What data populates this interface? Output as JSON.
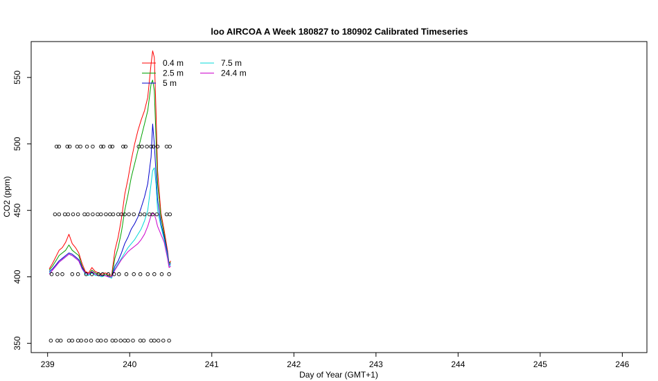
{
  "chart_data": {
    "type": "line",
    "title": "loo AIRCOA A  Week 180827 to 180902  Calibrated Timeseries",
    "xlabel": "Day of Year (GMT+1)",
    "ylabel": "CO2 (ppm)",
    "xlim": [
      238.8,
      246.3
    ],
    "ylim": [
      343,
      577
    ],
    "xticks": [
      239,
      240,
      241,
      242,
      243,
      244,
      245,
      246
    ],
    "yticks": [
      350,
      400,
      450,
      500,
      550
    ],
    "legend_position": "top-left",
    "series": [
      {
        "name": "0.4 m",
        "color": "#ff0000",
        "x": [
          239.02,
          239.06,
          239.1,
          239.14,
          239.18,
          239.22,
          239.26,
          239.3,
          239.34,
          239.38,
          239.42,
          239.46,
          239.5,
          239.54,
          239.58,
          239.62,
          239.66,
          239.7,
          239.74,
          239.78,
          239.82,
          239.86,
          239.9,
          239.94,
          239.98,
          240.02,
          240.06,
          240.1,
          240.14,
          240.18,
          240.22,
          240.26,
          240.28,
          240.3,
          240.32,
          240.34,
          240.38,
          240.42,
          240.46,
          240.48,
          240.5
        ],
        "y": [
          406,
          410,
          415,
          420,
          422,
          426,
          432,
          425,
          422,
          418,
          410,
          404,
          403,
          407,
          404,
          403,
          402,
          403,
          402,
          401,
          420,
          430,
          444,
          462,
          474,
          488,
          500,
          510,
          518,
          525,
          535,
          560,
          570,
          565,
          525,
          480,
          448,
          435,
          420,
          410,
          412
        ]
      },
      {
        "name": "2.5 m",
        "color": "#00a000",
        "x": [
          239.02,
          239.06,
          239.1,
          239.14,
          239.18,
          239.22,
          239.26,
          239.3,
          239.34,
          239.38,
          239.42,
          239.46,
          239.5,
          239.54,
          239.58,
          239.62,
          239.66,
          239.7,
          239.74,
          239.78,
          239.82,
          239.86,
          239.9,
          239.94,
          239.98,
          240.02,
          240.06,
          240.1,
          240.14,
          240.18,
          240.22,
          240.26,
          240.28,
          240.3,
          240.32,
          240.34,
          240.38,
          240.42,
          240.46,
          240.48,
          240.5
        ],
        "y": [
          405,
          408,
          412,
          416,
          418,
          420,
          424,
          420,
          418,
          416,
          408,
          403,
          402,
          405,
          403,
          402,
          401,
          402,
          401,
          400,
          414,
          422,
          434,
          450,
          462,
          475,
          485,
          495,
          505,
          515,
          525,
          545,
          548,
          540,
          505,
          470,
          445,
          432,
          418,
          410,
          411
        ]
      },
      {
        "name": "5 m",
        "color": "#0000cc",
        "x": [
          239.02,
          239.06,
          239.1,
          239.14,
          239.18,
          239.22,
          239.26,
          239.3,
          239.34,
          239.38,
          239.42,
          239.46,
          239.5,
          239.54,
          239.58,
          239.62,
          239.66,
          239.7,
          239.74,
          239.78,
          239.82,
          239.86,
          239.9,
          239.94,
          239.98,
          240.02,
          240.06,
          240.1,
          240.14,
          240.18,
          240.22,
          240.26,
          240.28,
          240.3,
          240.32,
          240.34,
          240.38,
          240.42,
          240.46,
          240.48,
          240.5
        ],
        "y": [
          404,
          406,
          409,
          412,
          414,
          416,
          418,
          417,
          415,
          413,
          407,
          403,
          402,
          404,
          402,
          401,
          401,
          401,
          400,
          400,
          408,
          412,
          418,
          425,
          430,
          436,
          440,
          445,
          452,
          460,
          470,
          490,
          515,
          500,
          478,
          458,
          440,
          430,
          418,
          409,
          410
        ]
      },
      {
        "name": "7.5 m",
        "color": "#00d8d8",
        "x": [
          239.02,
          239.06,
          239.1,
          239.14,
          239.18,
          239.22,
          239.26,
          239.3,
          239.34,
          239.38,
          239.42,
          239.46,
          239.5,
          239.54,
          239.58,
          239.62,
          239.66,
          239.7,
          239.74,
          239.78,
          239.82,
          239.86,
          239.9,
          239.94,
          239.98,
          240.02,
          240.06,
          240.1,
          240.14,
          240.18,
          240.22,
          240.26,
          240.28,
          240.3,
          240.32,
          240.34,
          240.38,
          240.42,
          240.46,
          240.48,
          240.5
        ],
        "y": [
          403,
          405,
          408,
          411,
          413,
          415,
          417,
          416,
          414,
          412,
          406,
          402,
          401,
          403,
          401,
          401,
          400,
          401,
          400,
          399,
          406,
          410,
          414,
          418,
          422,
          425,
          428,
          432,
          436,
          442,
          450,
          470,
          480,
          482,
          470,
          450,
          438,
          428,
          416,
          408,
          409
        ]
      },
      {
        "name": "24.4 m",
        "color": "#cc00cc",
        "x": [
          239.02,
          239.06,
          239.1,
          239.14,
          239.18,
          239.22,
          239.26,
          239.3,
          239.34,
          239.38,
          239.42,
          239.46,
          239.5,
          239.54,
          239.58,
          239.62,
          239.66,
          239.7,
          239.74,
          239.78,
          239.82,
          239.86,
          239.9,
          239.94,
          239.98,
          240.02,
          240.06,
          240.1,
          240.14,
          240.18,
          240.22,
          240.26,
          240.28,
          240.3,
          240.32,
          240.34,
          240.38,
          240.42,
          240.46,
          240.48,
          240.5
        ],
        "y": [
          402,
          405,
          408,
          411,
          413,
          415,
          417,
          416,
          414,
          412,
          406,
          403,
          402,
          404,
          402,
          401,
          401,
          401,
          400,
          400,
          405,
          409,
          413,
          416,
          419,
          421,
          423,
          425,
          428,
          432,
          438,
          446,
          448,
          447,
          443,
          438,
          432,
          426,
          414,
          407,
          408
        ]
      }
    ],
    "flag_points": [
      {
        "y_level": 352,
        "x": [
          239.04,
          239.12,
          239.16,
          239.26,
          239.3,
          239.37,
          239.41,
          239.47,
          239.53,
          239.61,
          239.65,
          239.71,
          239.79,
          239.83,
          239.89,
          239.94,
          239.98,
          240.04,
          240.13,
          240.17,
          240.26,
          240.3,
          240.35,
          240.41,
          240.48
        ]
      },
      {
        "y_level": 402,
        "x": [
          239.05,
          239.12,
          239.18,
          239.3,
          239.37,
          239.47,
          239.54,
          239.62,
          239.67,
          239.74,
          239.81,
          239.87,
          239.96,
          240.05,
          240.13,
          240.22,
          240.3,
          240.39,
          240.48
        ]
      },
      {
        "y_level": 447,
        "x": [
          239.09,
          239.14,
          239.21,
          239.25,
          239.31,
          239.37,
          239.45,
          239.49,
          239.55,
          239.61,
          239.65,
          239.71,
          239.76,
          239.8,
          239.86,
          239.9,
          239.94,
          239.99,
          240.05,
          240.13,
          240.18,
          240.24,
          240.28,
          240.33,
          240.45,
          240.49
        ]
      },
      {
        "y_level": 498,
        "x": [
          239.11,
          239.14,
          239.24,
          239.27,
          239.36,
          239.4,
          239.48,
          239.55,
          239.65,
          239.68,
          239.76,
          239.79,
          239.92,
          239.95,
          240.11,
          240.15,
          240.21,
          240.26,
          240.29,
          240.34,
          240.45,
          240.49
        ]
      }
    ]
  }
}
